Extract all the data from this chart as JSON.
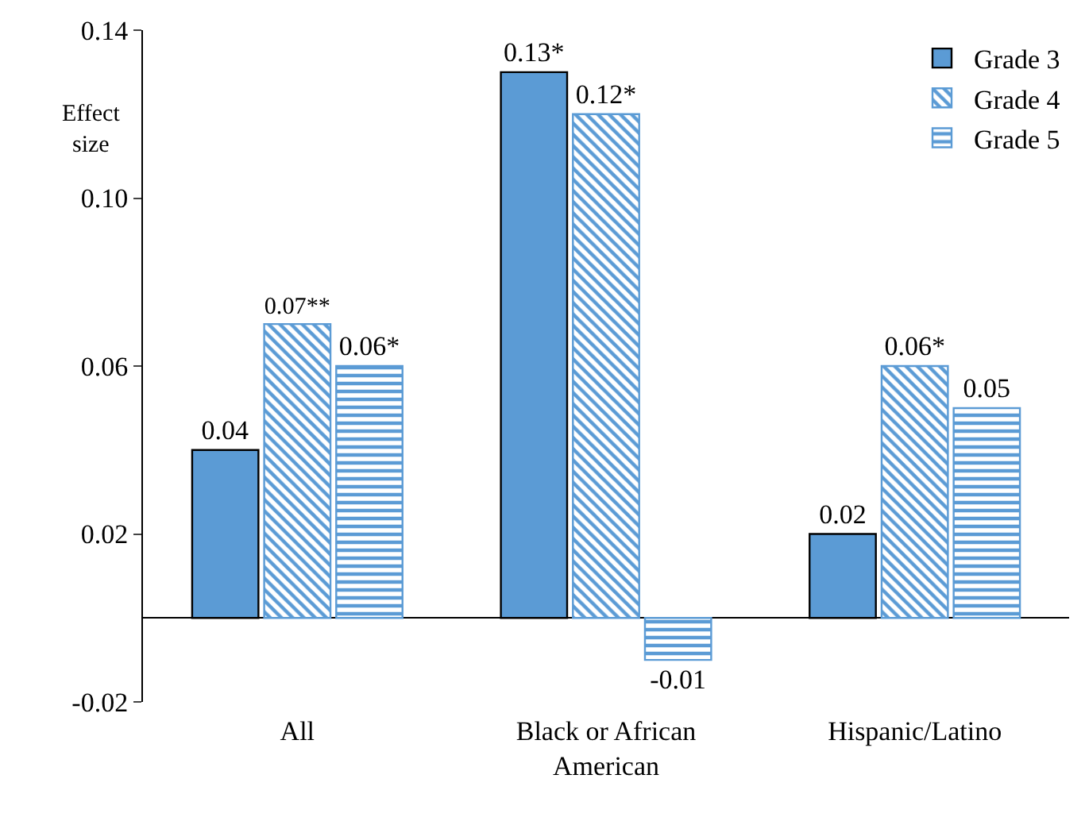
{
  "chart_data": {
    "type": "bar",
    "ylabel": "Effect size",
    "categories": [
      "All",
      "Black or African American",
      "Hispanic/Latino"
    ],
    "series": [
      {
        "name": "Grade 3",
        "color": "#5b9bd5",
        "values": [
          0.04,
          0.13,
          0.02
        ],
        "value_labels": [
          "0.04",
          "0.13*",
          "0.02"
        ]
      },
      {
        "name": "Grade 4",
        "color": "#5b9bd5",
        "values": [
          0.07,
          0.12,
          0.06
        ],
        "value_labels": [
          "0.07**",
          "0.12*",
          "0.06*"
        ]
      },
      {
        "name": "Grade 5",
        "color": "#5b9bd5",
        "values": [
          0.06,
          -0.01,
          0.05
        ],
        "value_labels": [
          "0.06*",
          "-0.01",
          "0.05"
        ]
      }
    ],
    "ylim": [
      -0.02,
      0.14
    ],
    "yticks": [
      -0.02,
      0.02,
      0.06,
      {
        "value": 0.1,
        "label": "0.10"
      },
      0.14
    ],
    "grid": false,
    "legend": "top right"
  }
}
